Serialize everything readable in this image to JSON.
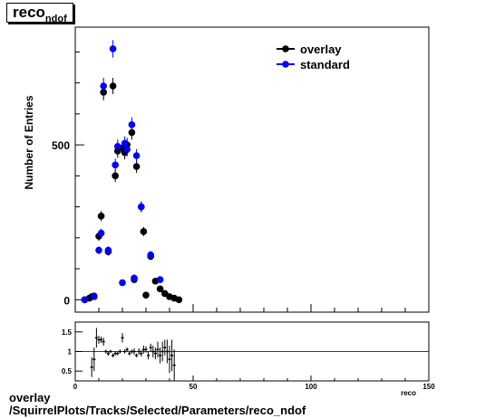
{
  "title": {
    "main": "reco",
    "sub": "ndof"
  },
  "footer": {
    "line1": "overlay",
    "line2": "/SquirrelPlots/Tracks/Selected/Parameters/reco_ndof"
  },
  "colors": {
    "overlay": "#000000",
    "standard": "#0000ff",
    "ratio_line": "#cc0000"
  },
  "chart_data": [
    {
      "type": "scatter",
      "title": "reco_ndof",
      "xlabel": "",
      "ylabel": "Number of Entries",
      "xlim": [
        0,
        150
      ],
      "ylim": [
        -40,
        880
      ],
      "yticks": [
        0,
        500
      ],
      "legend_position": "top-right",
      "series": [
        {
          "name": "overlay",
          "x": [
            4,
            6,
            7,
            8,
            10,
            11,
            12,
            14,
            16,
            17,
            18,
            20,
            21,
            22,
            24,
            25,
            26,
            28,
            29,
            30,
            32,
            34,
            36,
            38,
            40,
            42,
            44
          ],
          "y": [
            0,
            5,
            10,
            12,
            205,
            270,
            670,
            155,
            690,
            400,
            480,
            490,
            475,
            500,
            540,
            65,
            430,
            300,
            220,
            15,
            140,
            60,
            35,
            20,
            10,
            5,
            0
          ]
        },
        {
          "name": "standard",
          "x": [
            4,
            8,
            10,
            11,
            12,
            14,
            16,
            17,
            18,
            20,
            21,
            22,
            24,
            25,
            26,
            28,
            32,
            36
          ],
          "y": [
            0,
            10,
            160,
            215,
            690,
            160,
            810,
            435,
            495,
            55,
            505,
            485,
            565,
            70,
            465,
            300,
            145,
            65
          ]
        }
      ]
    },
    {
      "type": "scatter",
      "title": "",
      "xlabel": "reco",
      "ylabel": "",
      "xlim": [
        0,
        150
      ],
      "ylim": [
        0.25,
        1.75
      ],
      "xticks": [
        0,
        50,
        100,
        150
      ],
      "yticks": [
        0.5,
        1,
        1.5
      ],
      "reference_line": 1,
      "series": [
        {
          "name": "ratio",
          "x": [
            7,
            8,
            9,
            10,
            11,
            12,
            13,
            14,
            15,
            16,
            17,
            18,
            19,
            20,
            21,
            22,
            23,
            24,
            25,
            26,
            27,
            28,
            29,
            30,
            31,
            32,
            33,
            34,
            35,
            36,
            37,
            38,
            39,
            40,
            41,
            42
          ],
          "y": [
            0.6,
            0.8,
            1.35,
            1.3,
            1.3,
            1.25,
            1.0,
            0.95,
            1.0,
            0.9,
            0.95,
            0.95,
            1.0,
            1.35,
            1.0,
            1.05,
            0.95,
            1.0,
            1.0,
            0.9,
            1.0,
            0.95,
            1.05,
            1.05,
            0.9,
            1.1,
            1.0,
            0.95,
            1.05,
            0.9,
            1.0,
            1.1,
            1.0,
            0.8,
            0.9,
            0.65
          ],
          "err": [
            0.25,
            0.3,
            0.25,
            0.1,
            0.08,
            0.1,
            0.05,
            0.06,
            0.04,
            0.05,
            0.05,
            0.05,
            0.05,
            0.12,
            0.05,
            0.05,
            0.05,
            0.05,
            0.08,
            0.05,
            0.08,
            0.08,
            0.1,
            0.08,
            0.1,
            0.1,
            0.15,
            0.15,
            0.2,
            0.2,
            0.25,
            0.2,
            0.3,
            0.35,
            0.4,
            0.4
          ]
        }
      ]
    }
  ]
}
